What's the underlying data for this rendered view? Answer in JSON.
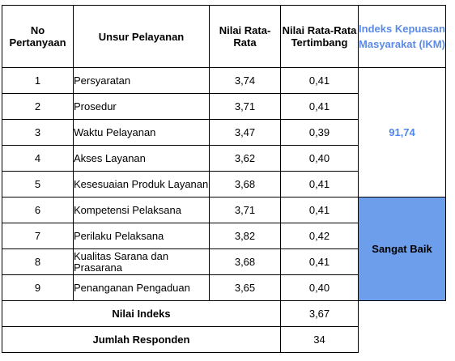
{
  "headers": {
    "no": "No Pertanyaan",
    "unsur": "Unsur Pelayanan",
    "nilai": "Nilai Rata-Rata",
    "tertimbang": "Nilai Rata-Rata Tertimbang",
    "ikm": "Indeks Kepuasan Masyarakat (IKM)"
  },
  "rows": [
    {
      "no": "1",
      "unsur": "Persyaratan",
      "nilai": "3,74",
      "tertimbang": "0,41"
    },
    {
      "no": "2",
      "unsur": "Prosedur",
      "nilai": "3,71",
      "tertimbang": "0,41"
    },
    {
      "no": "3",
      "unsur": "Waktu Pelayanan",
      "nilai": "3,47",
      "tertimbang": "0,39"
    },
    {
      "no": "4",
      "unsur": "Akses Layanan",
      "nilai": "3,62",
      "tertimbang": "0,40"
    },
    {
      "no": "5",
      "unsur": "Kesesuaian Produk Layanan",
      "nilai": "3,68",
      "tertimbang": "0,41"
    },
    {
      "no": "6",
      "unsur": "Kompetensi Pelaksana",
      "nilai": "3,71",
      "tertimbang": "0,41"
    },
    {
      "no": "7",
      "unsur": "Perilaku Pelaksana",
      "nilai": "3,82",
      "tertimbang": "0,42"
    },
    {
      "no": "8",
      "unsur": "Kualitas Sarana dan Prasarana",
      "nilai": "3,68",
      "tertimbang": "0,41"
    },
    {
      "no": "9",
      "unsur": "Penanganan Pengaduan",
      "nilai": "3,65",
      "tertimbang": "0,40"
    }
  ],
  "ikm": {
    "score": "91,74",
    "category": "Sangat Baik"
  },
  "summary": {
    "nilai_indeks_label": "Nilai Indeks",
    "nilai_indeks_value": "3,67",
    "jumlah_responden_label": "Jumlah Responden",
    "jumlah_responden_value": "34"
  },
  "colors": {
    "ikm_text": "#4f86e8",
    "category_bg": "#6d9eeb"
  }
}
